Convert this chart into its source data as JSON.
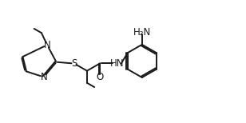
{
  "bg_color": "#ffffff",
  "line_color": "#1a1a1a",
  "line_width": 1.4,
  "font_size": 8.5,
  "xlim": [
    0,
    10
  ],
  "ylim": [
    0,
    5
  ]
}
